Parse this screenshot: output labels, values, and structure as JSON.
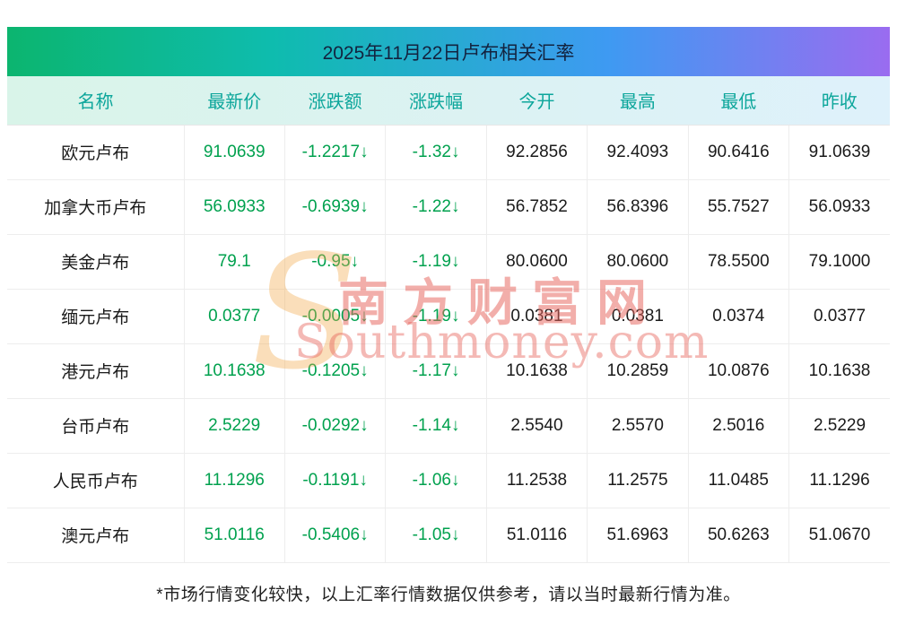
{
  "page": {
    "title": "2025年11月22日卢布相关汇率",
    "footer_note": "*市场行情变化较快，以上汇率行情数据仅供参考，请以当时最新行情为准。"
  },
  "watermark": {
    "initial": "S",
    "line_cn": "南方财富网",
    "line_en": "Southmoney.com"
  },
  "chart_data": {
    "type": "table",
    "title": "2025年11月22日卢布相关汇率",
    "columns": [
      "名称",
      "最新价",
      "涨跌额",
      "涨跌幅",
      "今开",
      "最高",
      "最低",
      "昨收"
    ],
    "column_keys": [
      "name",
      "latest",
      "change",
      "change_pct",
      "open",
      "high",
      "low",
      "prev_close"
    ],
    "green_value_columns": [
      1,
      2,
      3
    ],
    "rows": [
      [
        "欧元卢布",
        "91.0639",
        "-1.2217↓",
        "-1.32↓",
        "92.2856",
        "92.4093",
        "90.6416",
        "91.0639"
      ],
      [
        "加拿大币卢布",
        "56.0933",
        "-0.6939↓",
        "-1.22↓",
        "56.7852",
        "56.8396",
        "55.7527",
        "56.0933"
      ],
      [
        "美金卢布",
        "79.1",
        "-0.95↓",
        "-1.19↓",
        "80.0600",
        "80.0600",
        "78.5500",
        "79.1000"
      ],
      [
        "缅元卢布",
        "0.0377",
        "-0.0005↓",
        "-1.19↓",
        "0.0381",
        "0.0381",
        "0.0374",
        "0.0377"
      ],
      [
        "港元卢布",
        "10.1638",
        "-0.1205↓",
        "-1.17↓",
        "10.1638",
        "10.2859",
        "10.0876",
        "10.1638"
      ],
      [
        "台币卢布",
        "2.5229",
        "-0.0292↓",
        "-1.14↓",
        "2.5540",
        "2.5570",
        "2.5016",
        "2.5229"
      ],
      [
        "人民币卢布",
        "11.1296",
        "-0.1191↓",
        "-1.06↓",
        "11.2538",
        "11.2575",
        "11.0485",
        "11.1296"
      ],
      [
        "澳元卢布",
        "51.0116",
        "-0.5406↓",
        "-1.05↓",
        "51.0116",
        "51.6963",
        "50.6263",
        "51.0670"
      ]
    ]
  },
  "colors": {
    "title_gradient_left": "#0cb56f",
    "title_gradient_right": "#9a6cf0",
    "header_text_teal": "#0ca69b",
    "value_green": "#00a14e",
    "watermark_red": "#e6645c",
    "watermark_orange": "#f3a74a"
  }
}
